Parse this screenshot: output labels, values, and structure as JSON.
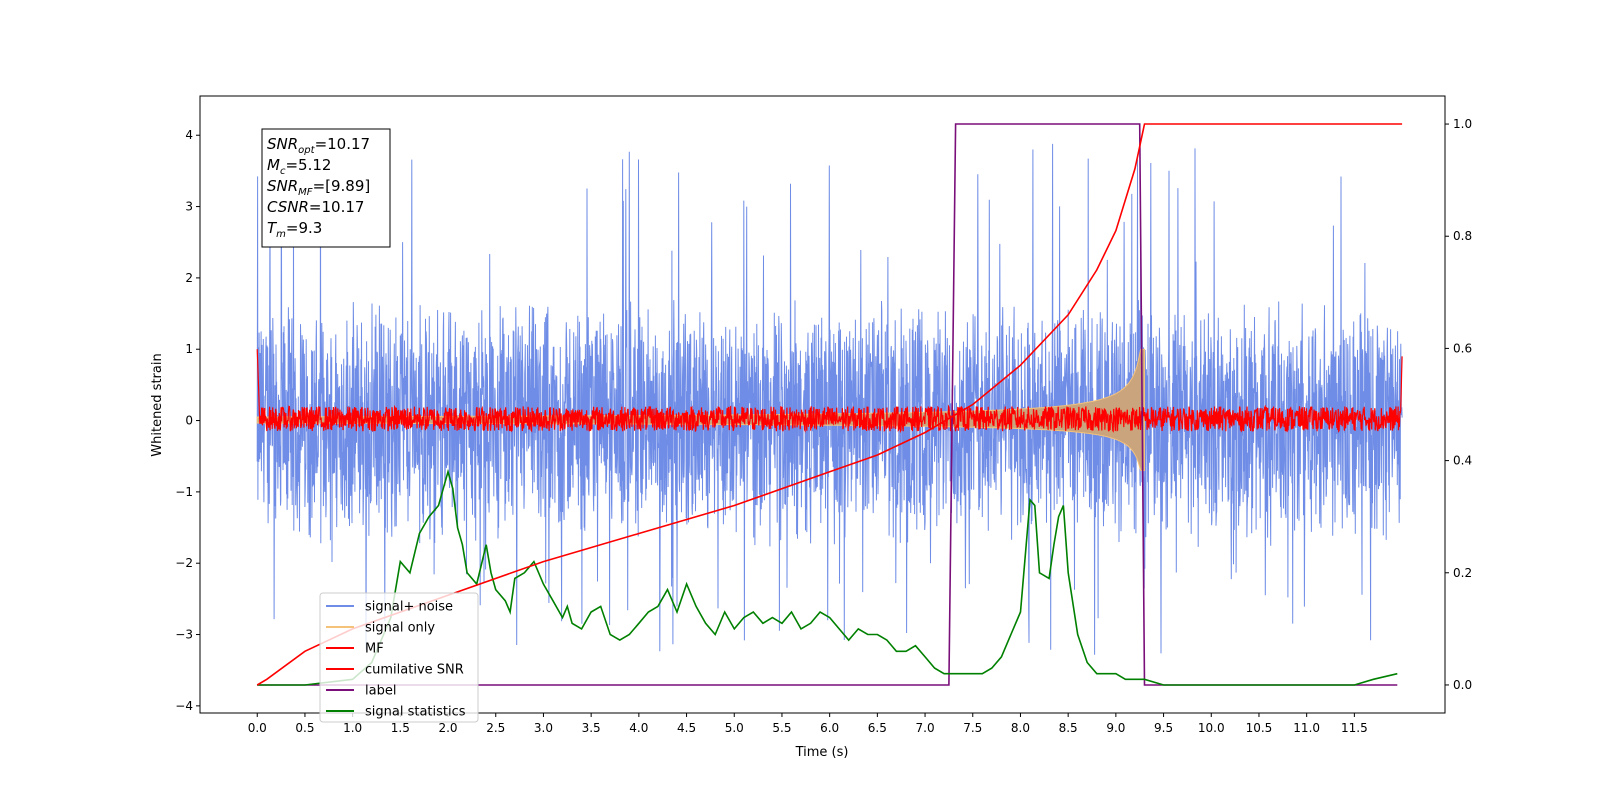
{
  "chart_data": {
    "type": "line",
    "xlabel": "Time (s)",
    "ylabel": "Whitened strain",
    "xlim": [
      -0.6,
      12.45
    ],
    "ylim": [
      -4.1,
      4.55
    ],
    "y2lim": [
      -0.05,
      1.05
    ],
    "x_ticks": [
      "0.0",
      "0.5",
      "1.0",
      "1.5",
      "2.0",
      "2.5",
      "3.0",
      "3.5",
      "4.0",
      "4.5",
      "5.0",
      "5.5",
      "6.0",
      "6.5",
      "7.0",
      "7.5",
      "8.0",
      "8.5",
      "9.0",
      "9.5",
      "10.0",
      "10.5",
      "11.0",
      "11.5"
    ],
    "y_ticks": [
      "4",
      "3",
      "2",
      "1",
      "0",
      "−1",
      "−2",
      "−3",
      "−4"
    ],
    "y2_ticks": [
      "1.0",
      "0.8",
      "0.6",
      "0.4",
      "0.2",
      "0.0"
    ],
    "grid": false,
    "legend_position": "lower-left",
    "info_box": [
      {
        "sym": "SNR",
        "sub": "opt",
        "val": "=10.17"
      },
      {
        "sym": "M",
        "sub": "c",
        "val": "=5.12"
      },
      {
        "sym": "SNR",
        "sub": "MF",
        "val": "=[9.89]"
      },
      {
        "sym": "CSNR",
        "sub": "",
        "val": "=10.17"
      },
      {
        "sym": "T",
        "sub": "m",
        "val": "=9.3"
      }
    ],
    "series": [
      {
        "name": "signal+ noise",
        "color": "#6f8de6",
        "axis": "left",
        "kind": "noise",
        "x_range": [
          0,
          12.0
        ],
        "band": [
          -1.5,
          1.5
        ],
        "peak_range": [
          -3.3,
          4.0
        ]
      },
      {
        "name": "signal only",
        "color": "#f5c27a",
        "axis": "left",
        "kind": "chirp",
        "x_range": [
          0,
          9.3
        ],
        "end_amplitude": 1.0
      },
      {
        "name": "MF",
        "color": "#ff0000",
        "axis": "left",
        "kind": "noise",
        "x_range": [
          0,
          12.0
        ],
        "band": [
          -0.15,
          0.2
        ]
      },
      {
        "name": "cumilative SNR",
        "color": "#ff0000",
        "axis": "right",
        "x": [
          0,
          0.1,
          0.5,
          1.0,
          2.0,
          3.0,
          4.0,
          5.0,
          6.0,
          6.5,
          7.0,
          7.5,
          8.0,
          8.5,
          8.8,
          9.0,
          9.2,
          9.3,
          12.0
        ],
        "y": [
          0.0,
          0.01,
          0.06,
          0.1,
          0.16,
          0.22,
          0.27,
          0.32,
          0.38,
          0.41,
          0.45,
          0.5,
          0.57,
          0.66,
          0.74,
          0.81,
          0.92,
          1.0,
          1.0
        ]
      },
      {
        "name": "label",
        "color": "#7a0f7a",
        "axis": "right",
        "x": [
          0,
          7.25,
          7.32,
          9.25,
          9.3,
          11.95
        ],
        "y": [
          0,
          0,
          1,
          1,
          0,
          0
        ]
      },
      {
        "name": "signal statistics",
        "color": "#008000",
        "axis": "right",
        "x": [
          0.0,
          0.5,
          1.0,
          1.2,
          1.4,
          1.5,
          1.6,
          1.7,
          1.8,
          1.9,
          2.0,
          2.05,
          2.1,
          2.15,
          2.2,
          2.3,
          2.4,
          2.45,
          2.5,
          2.6,
          2.65,
          2.7,
          2.8,
          2.9,
          3.0,
          3.1,
          3.2,
          3.25,
          3.3,
          3.4,
          3.5,
          3.6,
          3.7,
          3.8,
          3.9,
          4.0,
          4.1,
          4.2,
          4.3,
          4.4,
          4.5,
          4.6,
          4.7,
          4.8,
          4.9,
          5.0,
          5.1,
          5.2,
          5.3,
          5.4,
          5.5,
          5.6,
          5.7,
          5.8,
          5.9,
          6.0,
          6.1,
          6.2,
          6.3,
          6.4,
          6.5,
          6.6,
          6.7,
          6.8,
          6.9,
          7.0,
          7.1,
          7.2,
          7.3,
          7.4,
          7.5,
          7.6,
          7.7,
          7.8,
          7.9,
          8.0,
          8.1,
          8.15,
          8.2,
          8.3,
          8.35,
          8.4,
          8.45,
          8.5,
          8.6,
          8.7,
          8.8,
          8.9,
          9.0,
          9.1,
          9.2,
          9.3,
          9.5,
          10.0,
          10.5,
          11.0,
          11.5,
          11.7,
          11.95
        ],
        "y": [
          0.0,
          0.0,
          0.01,
          0.04,
          0.12,
          0.22,
          0.2,
          0.27,
          0.3,
          0.32,
          0.38,
          0.35,
          0.28,
          0.25,
          0.2,
          0.18,
          0.25,
          0.2,
          0.17,
          0.15,
          0.13,
          0.19,
          0.2,
          0.22,
          0.18,
          0.15,
          0.12,
          0.14,
          0.11,
          0.1,
          0.13,
          0.14,
          0.09,
          0.08,
          0.09,
          0.11,
          0.13,
          0.14,
          0.17,
          0.13,
          0.18,
          0.14,
          0.11,
          0.09,
          0.13,
          0.1,
          0.12,
          0.13,
          0.11,
          0.12,
          0.11,
          0.13,
          0.1,
          0.11,
          0.13,
          0.12,
          0.1,
          0.08,
          0.1,
          0.09,
          0.09,
          0.08,
          0.06,
          0.06,
          0.07,
          0.05,
          0.03,
          0.02,
          0.02,
          0.02,
          0.02,
          0.02,
          0.03,
          0.05,
          0.09,
          0.13,
          0.33,
          0.32,
          0.2,
          0.19,
          0.25,
          0.3,
          0.32,
          0.2,
          0.09,
          0.04,
          0.02,
          0.02,
          0.02,
          0.01,
          0.01,
          0.01,
          0.0,
          0.0,
          0.0,
          0.0,
          0.0,
          0.01,
          0.02
        ]
      }
    ]
  }
}
